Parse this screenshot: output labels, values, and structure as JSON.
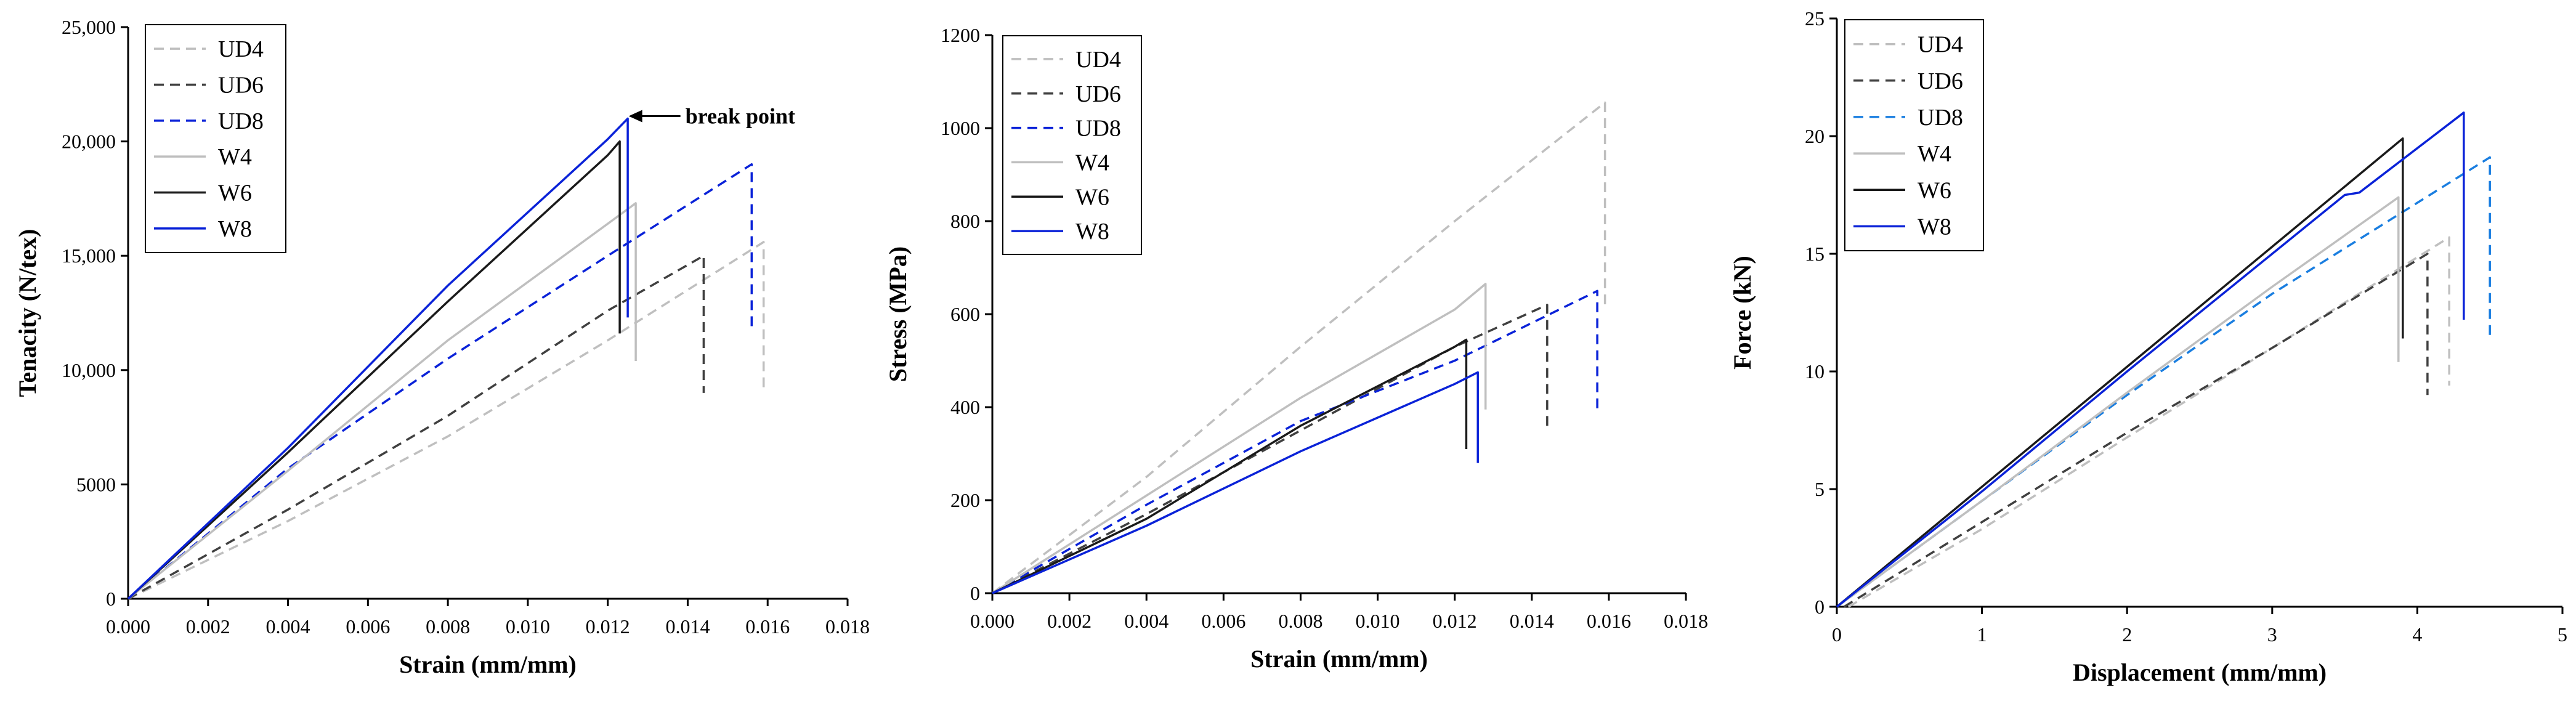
{
  "colors": {
    "light_gray": "#bfbfbf",
    "dark_gray": "#404040",
    "black": "#1a1a1a",
    "blue": "#0a22d8",
    "light_blue": "#1a7ee0"
  },
  "chart_data": [
    {
      "type": "line",
      "xlabel": "Strain (mm/mm)",
      "ylabel": "Tenacity (N/tex)",
      "xlim": [
        0,
        0.018
      ],
      "ylim": [
        0,
        25000
      ],
      "xticks": [
        0,
        0.002,
        0.004,
        0.006,
        0.008,
        0.01,
        0.012,
        0.014,
        0.016,
        0.018
      ],
      "xtick_labels": [
        "0.000",
        "0.002",
        "0.004",
        "0.006",
        "0.008",
        "0.010",
        "0.012",
        "0.014",
        "0.016",
        "0.018"
      ],
      "yticks": [
        0,
        5000,
        10000,
        15000,
        20000,
        25000
      ],
      "ytick_labels": [
        "0",
        "5000",
        "10,000",
        "15,000",
        "20,000",
        "25,000"
      ],
      "grid": false,
      "legend": "top-left",
      "annotations": [
        {
          "text": "break point",
          "x": 0.0124,
          "y": 21000
        }
      ],
      "series": [
        {
          "name": "UD4",
          "dash": "dashed",
          "color": "light_gray",
          "x": [
            0,
            0.004,
            0.008,
            0.012,
            0.0159,
            0.0159
          ],
          "y": [
            0,
            3400,
            7100,
            11300,
            15600,
            9200
          ]
        },
        {
          "name": "UD6",
          "dash": "dashed",
          "color": "dark_gray",
          "x": [
            0,
            0.004,
            0.008,
            0.012,
            0.0144,
            0.0144
          ],
          "y": [
            0,
            3900,
            8000,
            12600,
            15000,
            9000
          ]
        },
        {
          "name": "UD8",
          "dash": "dashed",
          "color": "blue",
          "x": [
            0,
            0.004,
            0.008,
            0.012,
            0.0156,
            0.0156
          ],
          "y": [
            0,
            5700,
            10500,
            15000,
            19000,
            11800
          ]
        },
        {
          "name": "W4",
          "dash": "solid",
          "color": "light_gray",
          "x": [
            0,
            0.004,
            0.008,
            0.012,
            0.0127,
            0.0127
          ],
          "y": [
            0,
            5600,
            11300,
            16400,
            17300,
            10400
          ]
        },
        {
          "name": "W6",
          "dash": "solid",
          "color": "black",
          "x": [
            0,
            0.004,
            0.008,
            0.012,
            0.0123,
            0.0123
          ],
          "y": [
            0,
            6400,
            13000,
            19400,
            20000,
            11600
          ]
        },
        {
          "name": "W8",
          "dash": "solid",
          "color": "blue",
          "x": [
            0,
            0.004,
            0.008,
            0.012,
            0.0125,
            0.0125
          ],
          "y": [
            0,
            6600,
            13700,
            20100,
            21000,
            12300
          ]
        }
      ]
    },
    {
      "type": "line",
      "xlabel": "Strain (mm/mm)",
      "ylabel": "Stress (MPa)",
      "xlim": [
        0,
        0.018
      ],
      "ylim": [
        0,
        1200
      ],
      "xticks": [
        0,
        0.002,
        0.004,
        0.006,
        0.008,
        0.01,
        0.012,
        0.014,
        0.016,
        0.018
      ],
      "xtick_labels": [
        "0.000",
        "0.002",
        "0.004",
        "0.006",
        "0.008",
        "0.010",
        "0.012",
        "0.014",
        "0.016",
        "0.018"
      ],
      "yticks": [
        0,
        200,
        400,
        600,
        800,
        1000,
        1200
      ],
      "ytick_labels": [
        "0",
        "200",
        "400",
        "600",
        "800",
        "1000",
        "1200"
      ],
      "grid": false,
      "legend": "top-left",
      "series": [
        {
          "name": "UD4",
          "dash": "dashed",
          "color": "light_gray",
          "x": [
            0,
            0.004,
            0.008,
            0.012,
            0.0159,
            0.0159
          ],
          "y": [
            0,
            250,
            530,
            800,
            1055,
            610
          ]
        },
        {
          "name": "UD6",
          "dash": "dashed",
          "color": "dark_gray",
          "x": [
            0,
            0.004,
            0.008,
            0.012,
            0.0144,
            0.0144
          ],
          "y": [
            0,
            170,
            350,
            530,
            620,
            360
          ]
        },
        {
          "name": "UD8",
          "dash": "dashed",
          "color": "blue",
          "x": [
            0,
            0.004,
            0.008,
            0.012,
            0.0157,
            0.0157
          ],
          "y": [
            0,
            190,
            370,
            500,
            650,
            385
          ]
        },
        {
          "name": "W4",
          "dash": "solid",
          "color": "light_gray",
          "x": [
            0,
            0.004,
            0.008,
            0.012,
            0.0128,
            0.0128
          ],
          "y": [
            0,
            210,
            420,
            610,
            665,
            395
          ]
        },
        {
          "name": "W6",
          "dash": "solid",
          "color": "black",
          "x": [
            0,
            0.004,
            0.008,
            0.012,
            0.0123,
            0.0123
          ],
          "y": [
            0,
            160,
            360,
            530,
            545,
            310
          ]
        },
        {
          "name": "W8",
          "dash": "solid",
          "color": "blue",
          "x": [
            0,
            0.004,
            0.008,
            0.012,
            0.0126,
            0.0126
          ],
          "y": [
            0,
            145,
            305,
            450,
            475,
            280
          ]
        }
      ]
    },
    {
      "type": "line",
      "xlabel": "Displacement (mm/mm)",
      "ylabel": "Force (kN)",
      "xlim": [
        0,
        5
      ],
      "ylim": [
        0,
        25
      ],
      "xticks": [
        0,
        1,
        2,
        3,
        4,
        5
      ],
      "xtick_labels": [
        "0",
        "1",
        "2",
        "3",
        "4",
        "5"
      ],
      "yticks": [
        0,
        5,
        10,
        15,
        20,
        25
      ],
      "ytick_labels": [
        "0",
        "5",
        "10",
        "15",
        "20",
        "25"
      ],
      "grid": false,
      "legend": "top-left",
      "series": [
        {
          "name": "UD4",
          "dash": "dashed",
          "color": "light_gray",
          "x": [
            0.08,
            1,
            2,
            3,
            4.22,
            4.22
          ],
          "y": [
            0,
            3.3,
            7.2,
            11.0,
            15.7,
            9.4
          ]
        },
        {
          "name": "UD6",
          "dash": "dashed",
          "color": "dark_gray",
          "x": [
            0.05,
            1,
            2,
            3,
            4.07,
            4.07
          ],
          "y": [
            0,
            3.6,
            7.4,
            11.0,
            15.0,
            9.0
          ]
        },
        {
          "name": "UD8",
          "dash": "dashed",
          "color": "light_blue",
          "x": [
            0,
            1,
            2,
            3,
            4.5,
            4.5
          ],
          "y": [
            0,
            4.5,
            9.0,
            13.3,
            19.1,
            11.4
          ]
        },
        {
          "name": "W4",
          "dash": "solid",
          "color": "light_gray",
          "x": [
            0,
            1,
            2,
            3,
            3.87,
            3.87
          ],
          "y": [
            0,
            4.5,
            9.1,
            13.6,
            17.4,
            10.4
          ]
        },
        {
          "name": "W6",
          "dash": "solid",
          "color": "black",
          "x": [
            0,
            1,
            2,
            3,
            3.9,
            3.9
          ],
          "y": [
            0,
            5.1,
            10.2,
            15.3,
            19.9,
            11.4
          ]
        },
        {
          "name": "W8",
          "dash": "solid",
          "color": "blue",
          "x": [
            0,
            1,
            2,
            3,
            3.5,
            3.6,
            4.32,
            4.32
          ],
          "y": [
            0,
            4.9,
            10.0,
            15.0,
            17.5,
            17.6,
            21.0,
            12.2
          ]
        }
      ]
    }
  ]
}
